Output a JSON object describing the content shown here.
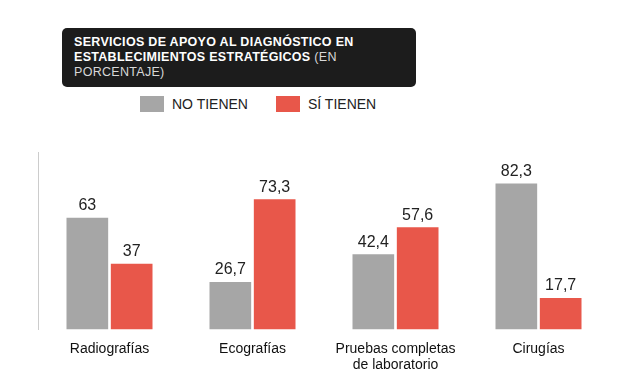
{
  "chart_data": {
    "type": "bar",
    "title": "SERVICIOS DE APOYO AL DIAGNÓSTICO EN ESTABLECIMIENTOS ESTRATÉGICOS",
    "subtitle": "(EN PORCENTAJE)",
    "categories": [
      "Radiografías",
      "Ecografías",
      "Pruebas completas de laboratorio",
      "Cirugías"
    ],
    "series": [
      {
        "name": "NO TIENEN",
        "color": "#a6a6a6",
        "values": [
          63,
          26.7,
          42.4,
          82.3
        ],
        "value_labels": [
          "63",
          "26,7",
          "42,4",
          "82,3"
        ]
      },
      {
        "name": "SÍ TIENEN",
        "color": "#e8574a",
        "values": [
          37,
          73.3,
          57.6,
          17.7
        ],
        "value_labels": [
          "37",
          "73,3",
          "57,6",
          "17,7"
        ]
      }
    ],
    "ylim": [
      0,
      100
    ],
    "tick_labels": "x",
    "grid": false,
    "legend": "top",
    "data_labels": true
  }
}
